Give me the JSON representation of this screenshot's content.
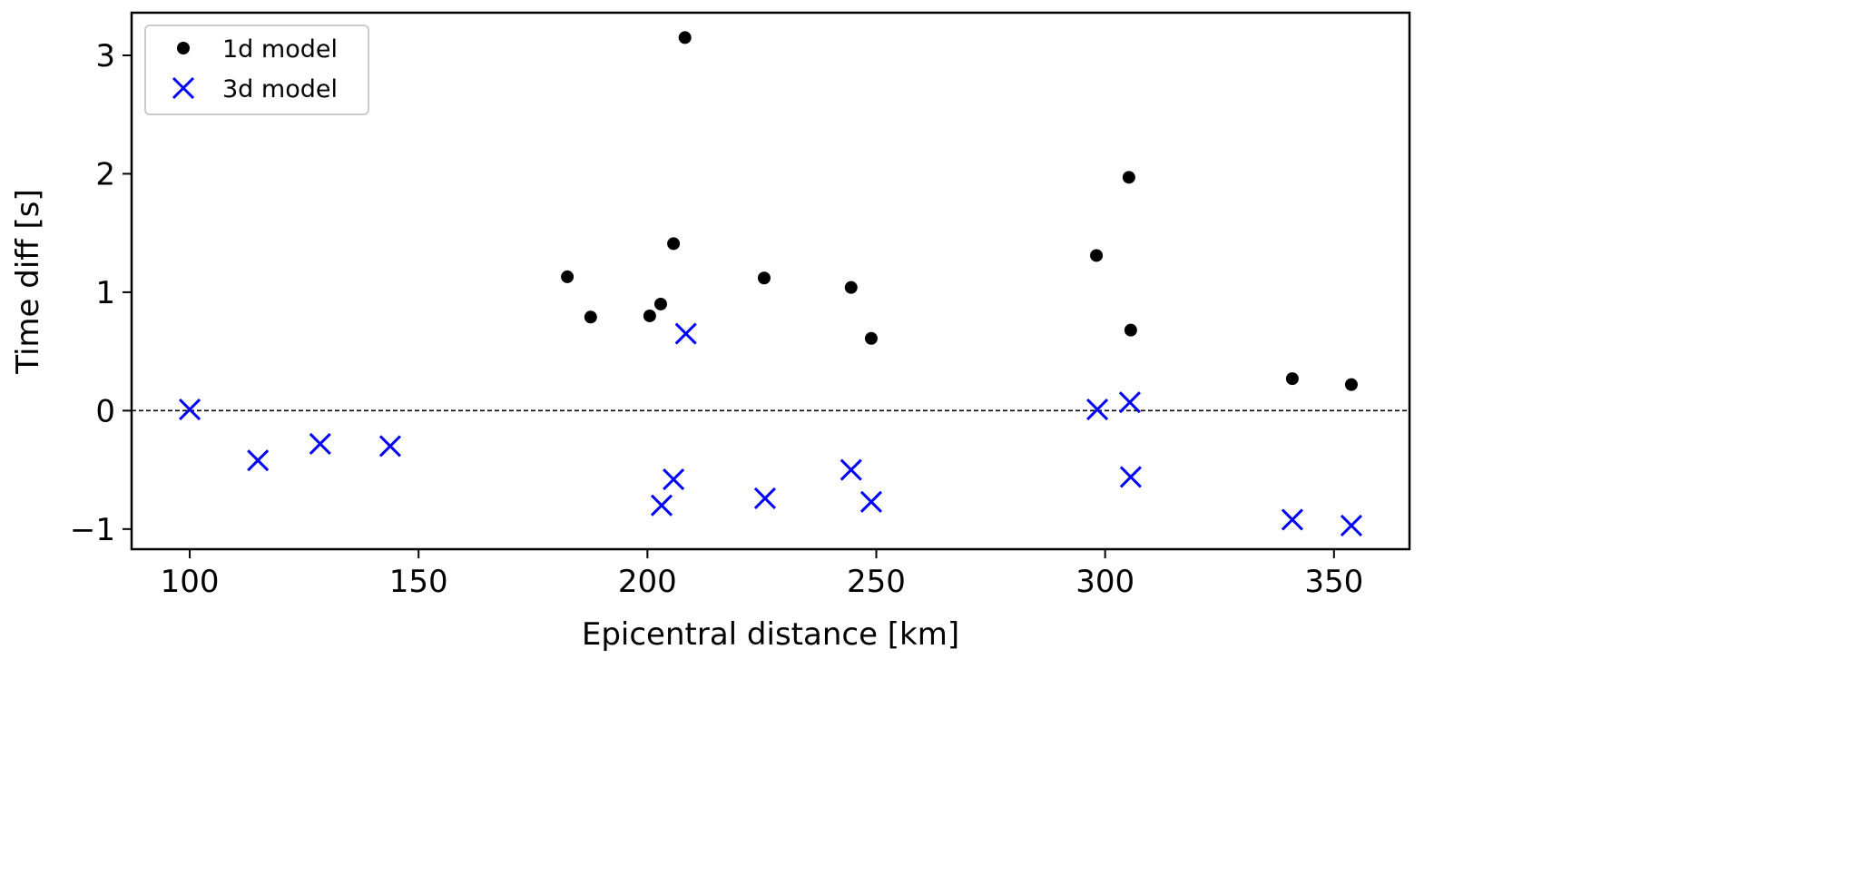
{
  "chart_data": {
    "type": "scatter",
    "title": "",
    "xlabel": "Epicentral distance [km]",
    "ylabel": "Time diff [s]",
    "xlim": [
      87.3,
      366.5
    ],
    "ylim": [
      -1.17,
      3.36
    ],
    "xticks": [
      100,
      150,
      200,
      250,
      300,
      350
    ],
    "yticks": [
      -1,
      0,
      1,
      2,
      3
    ],
    "xtick_labels": [
      "100",
      "150",
      "200",
      "250",
      "300",
      "350"
    ],
    "ytick_labels": [
      "−1",
      "0",
      "1",
      "2",
      "3"
    ],
    "grid": false,
    "reference_line": {
      "y": 0,
      "style": "dashed",
      "color": "#000000"
    },
    "legend": {
      "placement": "top-left"
    },
    "series": [
      {
        "name": "1d model",
        "marker": "dot",
        "color": "#000000",
        "x": [
          182.5,
          187.6,
          200.5,
          202.9,
          205.7,
          208.2,
          225.5,
          244.5,
          248.9,
          298.1,
          305.2,
          305.6,
          340.9,
          353.8
        ],
        "y": [
          1.13,
          0.79,
          0.8,
          0.9,
          1.41,
          3.15,
          1.12,
          1.04,
          0.61,
          1.31,
          1.97,
          0.68,
          0.27,
          0.22
        ]
      },
      {
        "name": "3d model",
        "marker": "x",
        "color": "#0000ff",
        "x": [
          100.0,
          114.9,
          128.5,
          143.8,
          203.1,
          205.7,
          208.4,
          225.7,
          244.5,
          248.9,
          298.3,
          305.4,
          305.6,
          340.9,
          353.8
        ],
        "y": [
          0.01,
          -0.42,
          -0.28,
          -0.3,
          -0.8,
          -0.58,
          0.65,
          -0.74,
          -0.5,
          -0.77,
          0.01,
          0.07,
          -0.56,
          -0.92,
          -0.97
        ]
      }
    ]
  }
}
